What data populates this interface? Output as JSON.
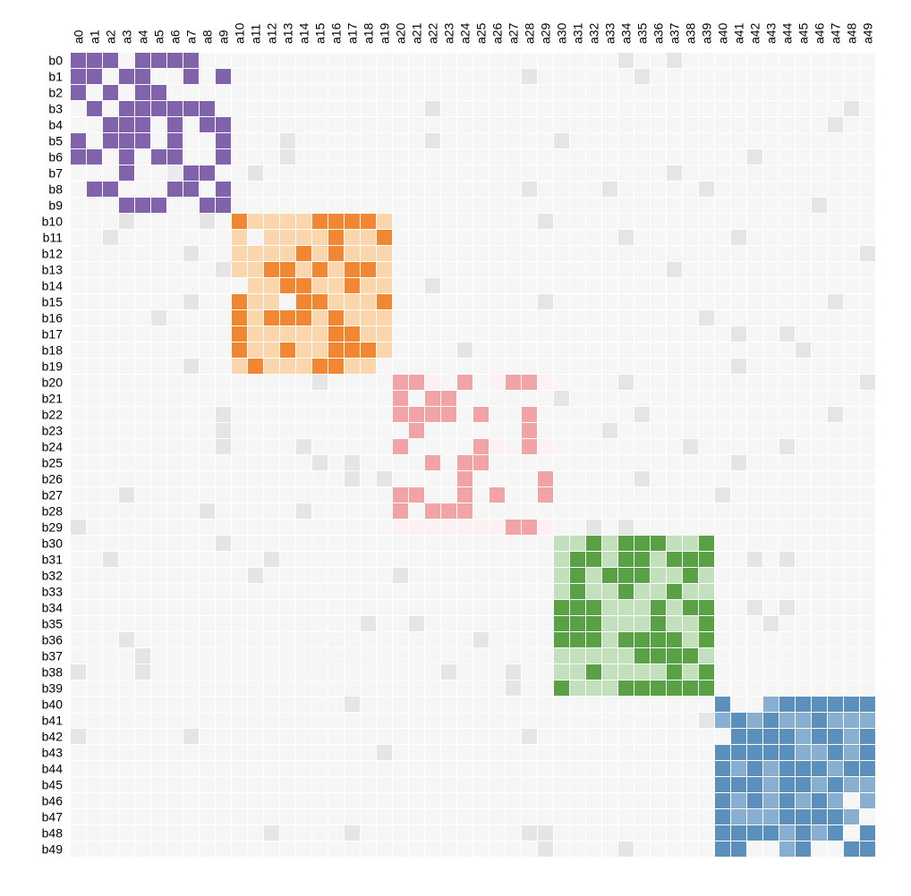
{
  "chart_data": {
    "type": "heatmap",
    "title": "",
    "xlabel": "",
    "ylabel": "",
    "rows": [
      "b0",
      "b1",
      "b2",
      "b3",
      "b4",
      "b5",
      "b6",
      "b7",
      "b8",
      "b9",
      "b10",
      "b11",
      "b12",
      "b13",
      "b14",
      "b15",
      "b16",
      "b17",
      "b18",
      "b19",
      "b20",
      "b21",
      "b22",
      "b23",
      "b24",
      "b25",
      "b26",
      "b27",
      "b28",
      "b29",
      "b30",
      "b31",
      "b32",
      "b33",
      "b34",
      "b35",
      "b36",
      "b37",
      "b38",
      "b39",
      "b40",
      "b41",
      "b42",
      "b43",
      "b44",
      "b45",
      "b46",
      "b47",
      "b48",
      "b49"
    ],
    "columns": [
      "a0",
      "a1",
      "a2",
      "a3",
      "a4",
      "a5",
      "a6",
      "a7",
      "a8",
      "a9",
      "a10",
      "a11",
      "a12",
      "a13",
      "a14",
      "a15",
      "a16",
      "a17",
      "a18",
      "a19",
      "a20",
      "a21",
      "a22",
      "a23",
      "a24",
      "a25",
      "a26",
      "a27",
      "a28",
      "a29",
      "a30",
      "a31",
      "a32",
      "a33",
      "a34",
      "a35",
      "a36",
      "a37",
      "a38",
      "a39",
      "a40",
      "a41",
      "a42",
      "a43",
      "a44",
      "a45",
      "a46",
      "a47",
      "a48",
      "a49"
    ],
    "value_legend": {
      "0": "none",
      "1": "weak",
      "2": "strong",
      "3": "noise"
    },
    "blocks": [
      {
        "rows": [
          0,
          9
        ],
        "cols": [
          0,
          9
        ],
        "colors": {
          "weak": "#ece9f3",
          "strong": "#8063ab"
        },
        "grid": [
          "2220222200",
          "2202200202",
          "2020220000",
          "0202222220",
          "0022202022",
          "2022202002",
          "2202022002",
          "0002001220",
          "0220002202",
          "0002220022"
        ]
      },
      {
        "rows": [
          10,
          19
        ],
        "cols": [
          10,
          19
        ],
        "colors": {
          "weak": "#fbd6ac",
          "strong": "#f28731"
        },
        "grid": [
          "2111122221",
          "1011112112",
          "1111212111",
          "1122121221",
          "0112211211",
          "2110221112",
          "2122212111",
          "2111112211",
          "2112112221",
          "1211122110"
        ]
      },
      {
        "rows": [
          20,
          29
        ],
        "cols": [
          20,
          29
        ],
        "colors": {
          "weak": "#fdf1f1",
          "strong": "#f0a4a5"
        },
        "grid": [
          "2210201221",
          "2022000000",
          "2222020020",
          "0200000020",
          "2000021021",
          "0020220000",
          "0000200002",
          "2200202002",
          "2022200000",
          "1111111221"
        ]
      },
      {
        "rows": [
          30,
          39
        ],
        "cols": [
          30,
          39
        ],
        "colors": {
          "weak": "#c3e0bd",
          "strong": "#58a245"
        },
        "grid": [
          "1121222112",
          "1221221222",
          "1212221121",
          "1211211211",
          "2221112122",
          "2221112112",
          "2221222212",
          "1111122221",
          "1121111212",
          "2111222222"
        ]
      },
      {
        "rows": [
          40,
          49
        ],
        "cols": [
          40,
          49
        ],
        "colors": {
          "weak": "#88aed0",
          "strong": "#5b90bd"
        },
        "grid": [
          "2001222222",
          "1212112111",
          "0222212212",
          "2222211212",
          "2121222122",
          "2221221211",
          "2121212101",
          "2111222210",
          "2222121202",
          "2200120022"
        ]
      }
    ],
    "noise_cells": [
      [
        0,
        34
      ],
      [
        0,
        37
      ],
      [
        1,
        28
      ],
      [
        1,
        35
      ],
      [
        3,
        22
      ],
      [
        3,
        48
      ],
      [
        4,
        47
      ],
      [
        5,
        13
      ],
      [
        5,
        22
      ],
      [
        5,
        30
      ],
      [
        6,
        13
      ],
      [
        6,
        42
      ],
      [
        7,
        11
      ],
      [
        7,
        37
      ],
      [
        8,
        28
      ],
      [
        8,
        33
      ],
      [
        8,
        39
      ],
      [
        9,
        46
      ],
      [
        10,
        3
      ],
      [
        10,
        8
      ],
      [
        10,
        29
      ],
      [
        11,
        2
      ],
      [
        11,
        34
      ],
      [
        11,
        41
      ],
      [
        12,
        7
      ],
      [
        12,
        49
      ],
      [
        13,
        9
      ],
      [
        13,
        37
      ],
      [
        14,
        22
      ],
      [
        15,
        7
      ],
      [
        15,
        29
      ],
      [
        15,
        47
      ],
      [
        16,
        5
      ],
      [
        16,
        39
      ],
      [
        17,
        41
      ],
      [
        17,
        44
      ],
      [
        18,
        24
      ],
      [
        18,
        45
      ],
      [
        19,
        7
      ],
      [
        19,
        41
      ],
      [
        20,
        15
      ],
      [
        20,
        34
      ],
      [
        20,
        49
      ],
      [
        21,
        30
      ],
      [
        22,
        9
      ],
      [
        22,
        35
      ],
      [
        22,
        47
      ],
      [
        23,
        9
      ],
      [
        23,
        33
      ],
      [
        24,
        9
      ],
      [
        24,
        14
      ],
      [
        24,
        38
      ],
      [
        24,
        44
      ],
      [
        25,
        15
      ],
      [
        25,
        17
      ],
      [
        25,
        41
      ],
      [
        26,
        17
      ],
      [
        26,
        19
      ],
      [
        26,
        35
      ],
      [
        27,
        3
      ],
      [
        27,
        40
      ],
      [
        28,
        8
      ],
      [
        28,
        14
      ],
      [
        29,
        0
      ],
      [
        29,
        32
      ],
      [
        29,
        34
      ],
      [
        30,
        9
      ],
      [
        31,
        2
      ],
      [
        31,
        12
      ],
      [
        31,
        42
      ],
      [
        31,
        44
      ],
      [
        32,
        11
      ],
      [
        32,
        20
      ],
      [
        34,
        42
      ],
      [
        34,
        44
      ],
      [
        35,
        18
      ],
      [
        35,
        21
      ],
      [
        35,
        43
      ],
      [
        36,
        3
      ],
      [
        36,
        25
      ],
      [
        37,
        4
      ],
      [
        38,
        0
      ],
      [
        38,
        4
      ],
      [
        38,
        23
      ],
      [
        38,
        27
      ],
      [
        39,
        27
      ],
      [
        40,
        17
      ],
      [
        41,
        39
      ],
      [
        42,
        0
      ],
      [
        42,
        7
      ],
      [
        42,
        28
      ],
      [
        43,
        19
      ],
      [
        48,
        12
      ],
      [
        48,
        17
      ],
      [
        48,
        28
      ],
      [
        48,
        29
      ],
      [
        49,
        29
      ],
      [
        49,
        34
      ]
    ],
    "colors": {
      "background": "#f6f6f6",
      "noise": "#e5e5e5",
      "gridline": "#ffffff"
    }
  }
}
